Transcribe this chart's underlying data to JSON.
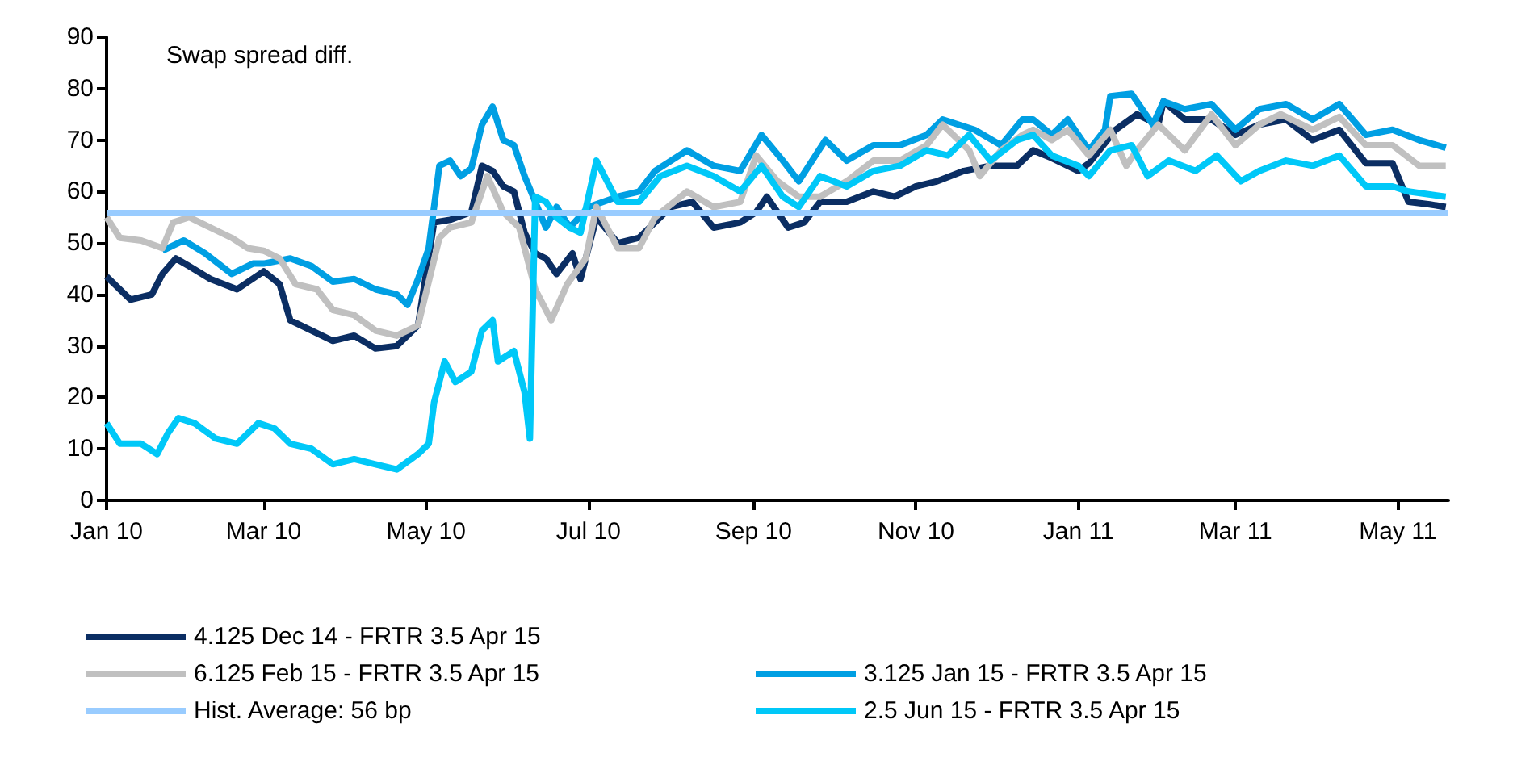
{
  "chart_data": {
    "type": "line",
    "title": "Swap spread diff.",
    "xlim": [
      "2010-01-01",
      "2011-05-20"
    ],
    "xticks": [
      {
        "value": "2010-01-01",
        "label": "Jan 10"
      },
      {
        "value": "2010-03-01",
        "label": "Mar 10"
      },
      {
        "value": "2010-05-01",
        "label": "May 10"
      },
      {
        "value": "2010-07-01",
        "label": "Jul 10"
      },
      {
        "value": "2010-09-01",
        "label": "Sep 10"
      },
      {
        "value": "2010-11-01",
        "label": "Nov 10"
      },
      {
        "value": "2011-01-01",
        "label": "Jan 11"
      },
      {
        "value": "2011-03-01",
        "label": "Mar 11"
      },
      {
        "value": "2011-05-01",
        "label": "May 11"
      }
    ],
    "ylim": [
      0,
      90
    ],
    "yticks": [
      0,
      10,
      20,
      30,
      40,
      50,
      60,
      70,
      80,
      90
    ],
    "grid": false,
    "legend": "bottom",
    "marker": "none",
    "line_style": "solid",
    "ref_lines": [
      {
        "axis": "y",
        "value": 56,
        "label": "Hist. Average: 56 bp",
        "color": "#99ccff"
      }
    ],
    "series": [
      {
        "name": "4.125 Dec 14 - FRTR 3.5 Apr 15",
        "color": "#0b2e63",
        "x": [
          "2010-01-01",
          "2010-01-06",
          "2010-01-10",
          "2010-01-18",
          "2010-01-22",
          "2010-01-27",
          "2010-02-01",
          "2010-02-09",
          "2010-02-19",
          "2010-03-01",
          "2010-03-07",
          "2010-03-11",
          "2010-03-19",
          "2010-03-27",
          "2010-04-04",
          "2010-04-12",
          "2010-04-20",
          "2010-04-28",
          "2010-05-04",
          "2010-05-10",
          "2010-05-18",
          "2010-05-22",
          "2010-05-26",
          "2010-05-30",
          "2010-06-03",
          "2010-06-07",
          "2010-06-11",
          "2010-06-15",
          "2010-06-19",
          "2010-06-25",
          "2010-06-28",
          "2010-07-04",
          "2010-07-12",
          "2010-07-20",
          "2010-07-28",
          "2010-08-01",
          "2010-08-09",
          "2010-08-17",
          "2010-08-27",
          "2010-09-02",
          "2010-09-06",
          "2010-09-14",
          "2010-09-20",
          "2010-09-26",
          "2010-10-06",
          "2010-10-16",
          "2010-10-24",
          "2010-11-01",
          "2010-11-09",
          "2010-11-19",
          "2010-11-29",
          "2010-12-09",
          "2010-12-15",
          "2010-12-22",
          "2011-01-01",
          "2011-01-05",
          "2011-01-15",
          "2011-01-23",
          "2011-01-31",
          "2011-02-02",
          "2011-02-10",
          "2011-02-20",
          "2011-03-01",
          "2011-03-10",
          "2011-03-20",
          "2011-03-30",
          "2011-04-09",
          "2011-04-19",
          "2011-04-29",
          "2011-05-05",
          "2011-05-13",
          "2011-05-19"
        ],
        "values": [
          43.5,
          41,
          39,
          40,
          44,
          47,
          45.5,
          43,
          41,
          44.5,
          42,
          35,
          33,
          31,
          32,
          29.5,
          30,
          34,
          54,
          54.5,
          56,
          65,
          64,
          61,
          60,
          52,
          48,
          47,
          44,
          48,
          43,
          55,
          50,
          51,
          55,
          57,
          58,
          53,
          54,
          56,
          59,
          53,
          54,
          58,
          58,
          60,
          59,
          61,
          62,
          64,
          65,
          65,
          68,
          66.5,
          64,
          65.5,
          72,
          75,
          73,
          77.5,
          74,
          74,
          71,
          73,
          74,
          70,
          72,
          65.5,
          65.5,
          58,
          57.5,
          57
        ]
      },
      {
        "name": "3.125 Jan 15 - FRTR 3.5 Apr 15",
        "color": "#009fe3",
        "x": [
          "2010-01-22",
          "2010-01-30",
          "2010-02-07",
          "2010-02-17",
          "2010-02-25",
          "2010-03-01",
          "2010-03-11",
          "2010-03-19",
          "2010-03-27",
          "2010-04-04",
          "2010-04-12",
          "2010-04-20",
          "2010-04-24",
          "2010-04-28",
          "2010-05-02",
          "2010-05-06",
          "2010-05-10",
          "2010-05-14",
          "2010-05-18",
          "2010-05-22",
          "2010-05-26",
          "2010-05-30",
          "2010-06-03",
          "2010-06-07",
          "2010-06-11",
          "2010-06-15",
          "2010-06-19",
          "2010-06-24",
          "2010-07-01",
          "2010-07-12",
          "2010-07-20",
          "2010-07-26",
          "2010-08-07",
          "2010-08-17",
          "2010-08-27",
          "2010-09-04",
          "2010-09-12",
          "2010-09-18",
          "2010-09-28",
          "2010-10-06",
          "2010-10-16",
          "2010-10-26",
          "2010-11-05",
          "2010-11-11",
          "2010-11-23",
          "2010-12-03",
          "2010-12-11",
          "2010-12-15",
          "2010-12-22",
          "2010-12-28",
          "2011-01-05",
          "2011-01-11",
          "2011-01-13",
          "2011-01-21",
          "2011-01-29",
          "2011-02-02",
          "2011-02-10",
          "2011-02-20",
          "2011-03-01",
          "2011-03-10",
          "2011-03-20",
          "2011-03-30",
          "2011-04-09",
          "2011-04-19",
          "2011-04-29",
          "2011-05-09",
          "2011-05-19"
        ],
        "values": [
          48.5,
          50.5,
          48,
          44,
          46,
          46,
          47,
          45.5,
          42.5,
          43,
          41,
          40,
          38,
          43,
          49,
          65,
          66,
          63,
          64.5,
          73,
          76.5,
          70,
          69,
          63,
          58,
          53,
          57,
          53,
          57,
          59,
          60,
          64,
          68,
          65,
          64,
          71,
          66,
          62,
          70,
          66,
          69,
          69,
          71,
          74,
          72,
          69,
          74,
          74,
          71,
          74,
          68,
          72,
          78.5,
          79,
          73,
          77.5,
          76,
          77,
          72,
          76,
          77,
          74,
          77,
          71,
          72,
          70,
          68.5
        ]
      },
      {
        "name": "6.125 Feb 15 - FRTR 3.5 Apr 15",
        "color": "#c0c0c0",
        "x": [
          "2010-01-01",
          "2010-01-06",
          "2010-01-14",
          "2010-01-22",
          "2010-01-26",
          "2010-02-01",
          "2010-02-09",
          "2010-02-17",
          "2010-02-23",
          "2010-03-01",
          "2010-03-07",
          "2010-03-13",
          "2010-03-21",
          "2010-03-27",
          "2010-04-04",
          "2010-04-12",
          "2010-04-20",
          "2010-04-28",
          "2010-05-06",
          "2010-05-10",
          "2010-05-18",
          "2010-05-24",
          "2010-05-30",
          "2010-06-05",
          "2010-06-11",
          "2010-06-17",
          "2010-06-23",
          "2010-06-30",
          "2010-07-04",
          "2010-07-12",
          "2010-07-20",
          "2010-07-26",
          "2010-08-07",
          "2010-08-17",
          "2010-08-27",
          "2010-09-02",
          "2010-09-10",
          "2010-09-18",
          "2010-09-26",
          "2010-10-06",
          "2010-10-16",
          "2010-10-26",
          "2010-11-05",
          "2010-11-11",
          "2010-11-21",
          "2010-11-25",
          "2010-12-03",
          "2010-12-11",
          "2010-12-15",
          "2010-12-22",
          "2010-12-28",
          "2011-01-05",
          "2011-01-13",
          "2011-01-19",
          "2011-01-23",
          "2011-01-31",
          "2011-02-10",
          "2011-02-20",
          "2011-03-01",
          "2011-03-10",
          "2011-03-18",
          "2011-03-30",
          "2011-04-09",
          "2011-04-19",
          "2011-04-29",
          "2011-05-09",
          "2011-05-19"
        ],
        "values": [
          55,
          51,
          50.5,
          49,
          54,
          55,
          53,
          51,
          49,
          48.5,
          47,
          42,
          41,
          37,
          36,
          33,
          32,
          34,
          51,
          53,
          54,
          63,
          56,
          53,
          41,
          35,
          42,
          47,
          57,
          49,
          49,
          55,
          60,
          57,
          58,
          67,
          62,
          59,
          59,
          62,
          66,
          66,
          69,
          73,
          68,
          63,
          68,
          71,
          72,
          70,
          72,
          67,
          72,
          65,
          68,
          73,
          68,
          75,
          69,
          73,
          75,
          72,
          74.5,
          69,
          69,
          65,
          65
        ]
      },
      {
        "name": "2.5 Jun 15 - FRTR 3.5 Apr 15",
        "color": "#00c8f8",
        "x": [
          "2010-01-01",
          "2010-01-06",
          "2010-01-14",
          "2010-01-20",
          "2010-01-24",
          "2010-01-28",
          "2010-02-03",
          "2010-02-11",
          "2010-02-19",
          "2010-02-27",
          "2010-03-05",
          "2010-03-11",
          "2010-03-19",
          "2010-03-27",
          "2010-04-04",
          "2010-04-12",
          "2010-04-20",
          "2010-04-28",
          "2010-05-02",
          "2010-05-04",
          "2010-05-08",
          "2010-05-12",
          "2010-05-18",
          "2010-05-22",
          "2010-05-26",
          "2010-05-28",
          "2010-06-03",
          "2010-06-07",
          "2010-06-09",
          "2010-06-11",
          "2010-06-15",
          "2010-06-19",
          "2010-06-24",
          "2010-06-28",
          "2010-07-04",
          "2010-07-12",
          "2010-07-20",
          "2010-07-28",
          "2010-08-07",
          "2010-08-17",
          "2010-08-27",
          "2010-09-04",
          "2010-09-12",
          "2010-09-18",
          "2010-09-26",
          "2010-10-06",
          "2010-10-16",
          "2010-10-26",
          "2010-11-05",
          "2010-11-13",
          "2010-11-21",
          "2010-11-29",
          "2010-12-09",
          "2010-12-15",
          "2010-12-22",
          "2011-01-01",
          "2011-01-05",
          "2011-01-13",
          "2011-01-21",
          "2011-01-27",
          "2011-02-04",
          "2011-02-14",
          "2011-02-22",
          "2011-03-03",
          "2011-03-10",
          "2011-03-20",
          "2011-03-30",
          "2011-04-09",
          "2011-04-19",
          "2011-04-29",
          "2011-05-05",
          "2011-05-19"
        ],
        "values": [
          15,
          11,
          11,
          9,
          13,
          16,
          15,
          12,
          11,
          15,
          14,
          11,
          10,
          7,
          8,
          7,
          6,
          9,
          11,
          19,
          27,
          23,
          25,
          33,
          35,
          27,
          29,
          21,
          12,
          59,
          58,
          55,
          53,
          52,
          66,
          58,
          58,
          63,
          65,
          63,
          60,
          65,
          59,
          57,
          63,
          61,
          64,
          65,
          68,
          67,
          71,
          66,
          70,
          71,
          67,
          65,
          63,
          68,
          69,
          63,
          66,
          64,
          67,
          62,
          64,
          66,
          65,
          67,
          61,
          61,
          60,
          59
        ]
      }
    ]
  }
}
